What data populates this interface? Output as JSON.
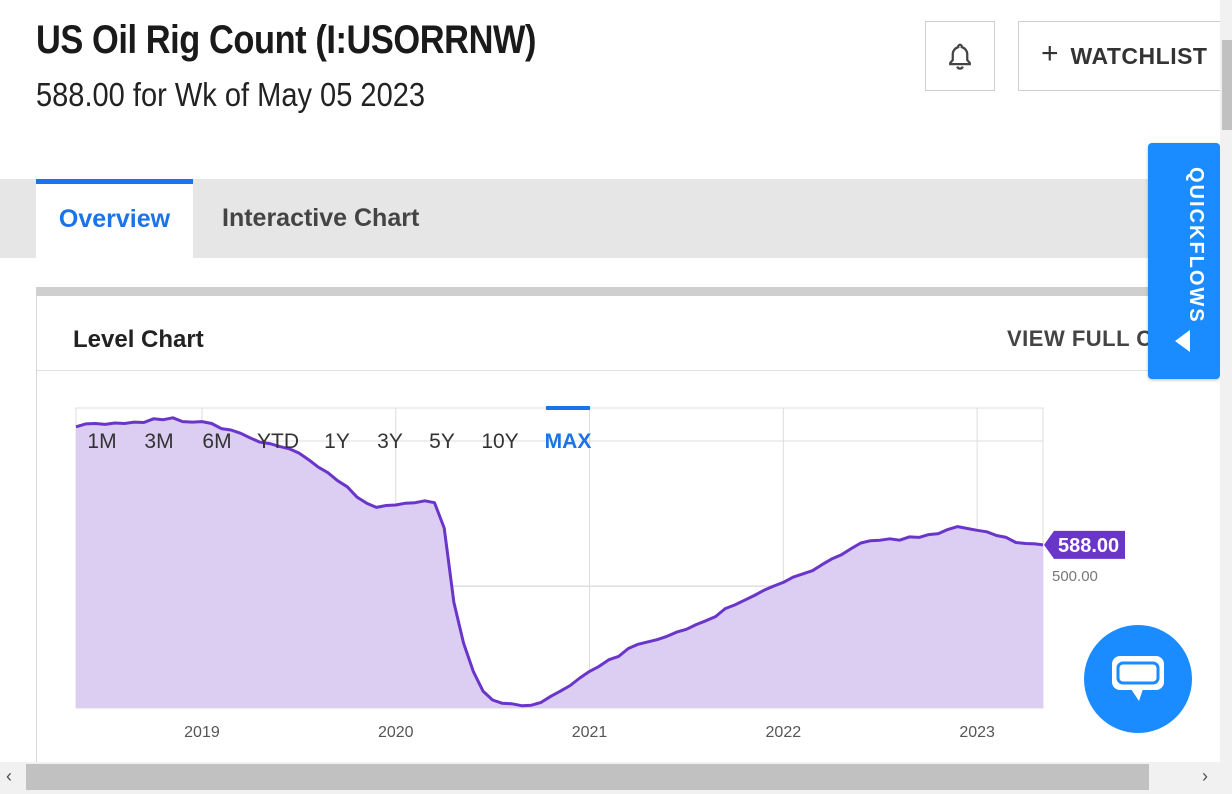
{
  "header": {
    "title": "US Oil Rig Count (I:USORRNW)",
    "subtitle": "588.00 for Wk of May 05 2023",
    "watchlist_label": "WATCHLIST",
    "watchlist_plus": "+"
  },
  "tabs": [
    {
      "label": "Overview",
      "active": true
    },
    {
      "label": "Interactive Chart",
      "active": false
    }
  ],
  "card": {
    "title": "Level Chart",
    "view_full_label": "VIEW FULL CH"
  },
  "quickflows": {
    "label": "QUICKFLOWS"
  },
  "scroll": {
    "left_arrow": "‹",
    "right_arrow": "›"
  },
  "colors": {
    "accent": "#1a73e8",
    "series_line": "#6a35c9",
    "series_fill": "#dccdf2",
    "quickflows_bg": "#1a8cff"
  },
  "icons": [
    "bell-icon",
    "plus-icon",
    "chat-icon",
    "caret-left-icon"
  ],
  "chart_data": {
    "type": "area",
    "range_buttons": [
      "1M",
      "3M",
      "6M",
      "YTD",
      "1Y",
      "3Y",
      "5Y",
      "10Y",
      "MAX"
    ],
    "selected_range": "MAX",
    "x_tick_labels": [
      "2019",
      "2020",
      "2021",
      "2022",
      "2023"
    ],
    "y_tick_label": "500.00",
    "last_value_label": "588.00",
    "x_range": [
      "2018-05",
      "2023-05"
    ],
    "y_range_estimate": [
      240,
      880
    ],
    "grid": true,
    "series": [
      {
        "values": [
          [
            2018.35,
            840
          ],
          [
            2018.4,
            846
          ],
          [
            2018.45,
            847
          ],
          [
            2018.5,
            845
          ],
          [
            2018.55,
            848
          ],
          [
            2018.6,
            847
          ],
          [
            2018.65,
            850
          ],
          [
            2018.7,
            849
          ],
          [
            2018.75,
            857
          ],
          [
            2018.8,
            855
          ],
          [
            2018.85,
            859
          ],
          [
            2018.9,
            851
          ],
          [
            2018.95,
            850
          ],
          [
            2019.0,
            851
          ],
          [
            2019.05,
            847
          ],
          [
            2019.1,
            836
          ],
          [
            2019.15,
            833
          ],
          [
            2019.2,
            826
          ],
          [
            2019.25,
            816
          ],
          [
            2019.3,
            807
          ],
          [
            2019.35,
            804
          ],
          [
            2019.4,
            798
          ],
          [
            2019.45,
            793
          ],
          [
            2019.5,
            784
          ],
          [
            2019.55,
            770
          ],
          [
            2019.6,
            754
          ],
          [
            2019.65,
            742
          ],
          [
            2019.7,
            725
          ],
          [
            2019.75,
            712
          ],
          [
            2019.8,
            690
          ],
          [
            2019.85,
            677
          ],
          [
            2019.9,
            668
          ],
          [
            2019.95,
            672
          ],
          [
            2020.0,
            673
          ],
          [
            2020.05,
            677
          ],
          [
            2020.1,
            678
          ],
          [
            2020.15,
            682
          ],
          [
            2020.2,
            678
          ],
          [
            2020.25,
            624
          ],
          [
            2020.3,
            465
          ],
          [
            2020.35,
            378
          ],
          [
            2020.4,
            318
          ],
          [
            2020.45,
            276
          ],
          [
            2020.5,
            257
          ],
          [
            2020.55,
            250
          ],
          [
            2020.6,
            249
          ],
          [
            2020.65,
            245
          ],
          [
            2020.7,
            246
          ],
          [
            2020.75,
            252
          ],
          [
            2020.8,
            265
          ],
          [
            2020.85,
            276
          ],
          [
            2020.9,
            288
          ],
          [
            2020.95,
            304
          ],
          [
            2021.0,
            318
          ],
          [
            2021.05,
            329
          ],
          [
            2021.1,
            343
          ],
          [
            2021.15,
            350
          ],
          [
            2021.2,
            367
          ],
          [
            2021.25,
            376
          ],
          [
            2021.3,
            381
          ],
          [
            2021.35,
            386
          ],
          [
            2021.4,
            393
          ],
          [
            2021.45,
            402
          ],
          [
            2021.5,
            408
          ],
          [
            2021.55,
            418
          ],
          [
            2021.6,
            426
          ],
          [
            2021.65,
            435
          ],
          [
            2021.7,
            452
          ],
          [
            2021.75,
            460
          ],
          [
            2021.8,
            470
          ],
          [
            2021.85,
            480
          ],
          [
            2021.9,
            491
          ],
          [
            2021.95,
            500
          ],
          [
            2022.0,
            508
          ],
          [
            2022.05,
            519
          ],
          [
            2022.1,
            526
          ],
          [
            2022.15,
            533
          ],
          [
            2022.2,
            546
          ],
          [
            2022.25,
            558
          ],
          [
            2022.3,
            567
          ],
          [
            2022.35,
            580
          ],
          [
            2022.4,
            592
          ],
          [
            2022.45,
            597
          ],
          [
            2022.5,
            598
          ],
          [
            2022.55,
            601
          ],
          [
            2022.6,
            598
          ],
          [
            2022.65,
            605
          ],
          [
            2022.7,
            604
          ],
          [
            2022.75,
            610
          ],
          [
            2022.8,
            612
          ],
          [
            2022.85,
            621
          ],
          [
            2022.9,
            627
          ],
          [
            2022.95,
            623
          ],
          [
            2023.0,
            619
          ],
          [
            2023.05,
            616
          ],
          [
            2023.1,
            608
          ],
          [
            2023.15,
            604
          ],
          [
            2023.2,
            593
          ],
          [
            2023.25,
            591
          ],
          [
            2023.3,
            590
          ],
          [
            2023.34,
            588
          ]
        ]
      }
    ]
  }
}
